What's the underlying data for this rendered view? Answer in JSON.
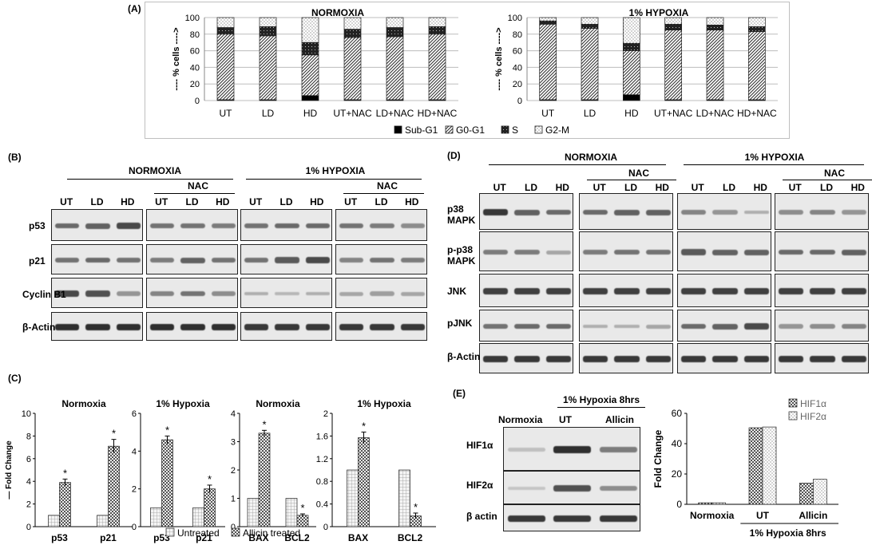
{
  "panelA": {
    "label": "(A)",
    "ylabel": "---- % cells ---->",
    "categories": [
      "UT",
      "LD",
      "HD",
      "UT+NAC",
      "LD+NAC",
      "HD+NAC"
    ],
    "legend": [
      "Sub-G1",
      "G0-G1",
      "S",
      "G2-M"
    ],
    "left_title": "NORMOXIA",
    "right_title": "1% HYPOXIA"
  },
  "panelB": {
    "label": "(B)",
    "normoxia": "NORMOXIA",
    "hypoxia": "1% HYPOXIA",
    "nac": "NAC",
    "lanes": [
      "UT",
      "LD",
      "HD"
    ],
    "rows": [
      "p53",
      "p21",
      "Cyclin B1",
      "β-Actin"
    ]
  },
  "panelC": {
    "label": "(C)",
    "ylabel": "— Fold Change",
    "legend": [
      "Untreated",
      "Allicin treated"
    ],
    "star": "*"
  },
  "panelD": {
    "label": "(D)",
    "normoxia": "NORMOXIA",
    "hypoxia": "1% HYPOXIA",
    "nac": "NAC",
    "lanes": [
      "UT",
      "LD",
      "HD"
    ],
    "rows": [
      "p38 MAPK",
      "p-p38 MAPK",
      "JNK",
      "pJNK",
      "β-Actin"
    ]
  },
  "panelE": {
    "label": "(E)",
    "hypoxia_header": "1% Hypoxia 8hrs",
    "lanes": [
      "Normoxia",
      "UT",
      "Allicin"
    ],
    "rows": [
      "HIF1α",
      "HIF2α",
      "β actin"
    ],
    "ylabel": "Fold Change",
    "legend": [
      "HIF1α",
      "HIF2α"
    ],
    "x_groups": [
      "Normoxia",
      "UT",
      "Allicin"
    ],
    "group_label": "1% Hypoxia 8hrs"
  },
  "chart_data": [
    {
      "type": "bar",
      "title": "NORMOXIA",
      "stacked": true,
      "categories": [
        "UT",
        "LD",
        "HD",
        "UT+NAC",
        "LD+NAC",
        "HD+NAC"
      ],
      "ylim": [
        0,
        100
      ],
      "yticks": [
        0,
        20,
        40,
        60,
        80,
        100
      ],
      "series": [
        {
          "name": "Sub-G1",
          "values": [
            1,
            1,
            6,
            1,
            1,
            1
          ]
        },
        {
          "name": "G0-G1",
          "values": [
            79,
            77,
            49,
            75,
            76,
            79
          ]
        },
        {
          "name": "S",
          "values": [
            8,
            11,
            15,
            10,
            11,
            9
          ]
        },
        {
          "name": "G2-M",
          "values": [
            12,
            11,
            30,
            14,
            12,
            11
          ]
        }
      ]
    },
    {
      "type": "bar",
      "title": "1% HYPOXIA",
      "stacked": true,
      "categories": [
        "UT",
        "LD",
        "HD",
        "UT+NAC",
        "LD+NAC",
        "HD+NAC"
      ],
      "ylim": [
        0,
        100
      ],
      "yticks": [
        0,
        20,
        40,
        60,
        80,
        100
      ],
      "series": [
        {
          "name": "Sub-G1",
          "values": [
            1,
            1,
            7,
            1,
            1,
            1
          ]
        },
        {
          "name": "G0-G1",
          "values": [
            91,
            86,
            53,
            84,
            84,
            82
          ]
        },
        {
          "name": "S",
          "values": [
            4,
            5,
            9,
            7,
            6,
            6
          ]
        },
        {
          "name": "G2-M",
          "values": [
            4,
            8,
            31,
            8,
            9,
            11
          ]
        }
      ]
    },
    {
      "type": "bar",
      "title": "Normoxia",
      "categories": [
        "p53",
        "p21"
      ],
      "ylim": [
        0,
        10
      ],
      "yticks": [
        0,
        2,
        4,
        6,
        8,
        10
      ],
      "series": [
        {
          "name": "Untreated",
          "values": [
            1,
            1
          ]
        },
        {
          "name": "Allicin treated",
          "values": [
            3.9,
            7.1
          ]
        }
      ],
      "errors": [
        [
          0,
          0
        ],
        [
          0.3,
          0.6
        ]
      ],
      "significant": [
        false,
        false,
        true,
        true
      ]
    },
    {
      "type": "bar",
      "title": "1% Hypoxia",
      "categories": [
        "p53",
        "p21"
      ],
      "ylim": [
        0,
        6
      ],
      "yticks": [
        0,
        2,
        4,
        6
      ],
      "series": [
        {
          "name": "Untreated",
          "values": [
            1,
            1
          ]
        },
        {
          "name": "Allicin treated",
          "values": [
            4.6,
            2.0
          ]
        }
      ],
      "errors": [
        [
          0,
          0
        ],
        [
          0.2,
          0.2
        ]
      ],
      "significant": [
        false,
        false,
        true,
        true
      ]
    },
    {
      "type": "bar",
      "title": "Normoxia",
      "categories": [
        "BAX",
        "BCL2"
      ],
      "ylim": [
        0,
        4
      ],
      "yticks": [
        0,
        1,
        2,
        3,
        4
      ],
      "series": [
        {
          "name": "Untreated",
          "values": [
            1,
            1
          ]
        },
        {
          "name": "Allicin treated",
          "values": [
            3.3,
            0.4
          ]
        }
      ],
      "errors": [
        [
          0,
          0
        ],
        [
          0.1,
          0.05
        ]
      ],
      "significant": [
        false,
        false,
        true,
        true
      ]
    },
    {
      "type": "bar",
      "title": "1% Hypoxia",
      "categories": [
        "BAX",
        "BCL2"
      ],
      "ylim": [
        0,
        2
      ],
      "yticks": [
        0,
        0.4,
        0.8,
        1.2,
        1.6,
        2
      ],
      "series": [
        {
          "name": "Untreated",
          "values": [
            1,
            1
          ]
        },
        {
          "name": "Allicin treated",
          "values": [
            1.57,
            0.19
          ]
        }
      ],
      "errors": [
        [
          0,
          0
        ],
        [
          0.1,
          0.05
        ]
      ],
      "significant": [
        false,
        false,
        true,
        true
      ]
    },
    {
      "type": "bar",
      "categories": [
        "Normoxia",
        "UT",
        "Allicin"
      ],
      "ylim": [
        0,
        60
      ],
      "yticks": [
        0,
        20,
        40,
        60
      ],
      "ylabel": "Fold Change",
      "series": [
        {
          "name": "HIF1α",
          "values": [
            1,
            50.5,
            14
          ]
        },
        {
          "name": "HIF2α",
          "values": [
            1,
            51,
            16.5
          ]
        }
      ]
    }
  ]
}
